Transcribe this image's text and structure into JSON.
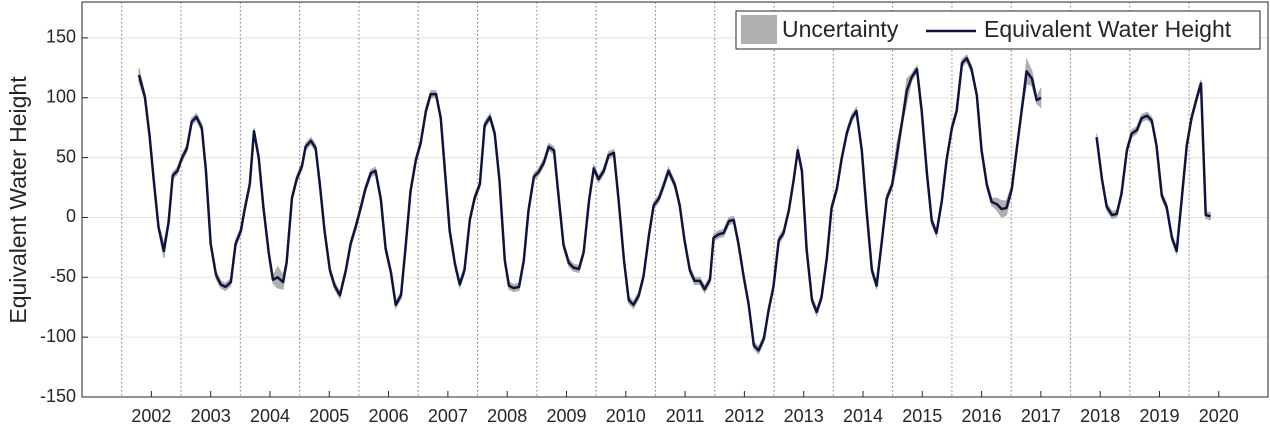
{
  "chart_data": {
    "type": "line",
    "y_label": "Equivalent Water Height",
    "xlim": [
      2001.33,
      2021.33
    ],
    "ylim": [
      -150,
      180
    ],
    "yticks": [
      -150,
      -100,
      -50,
      0,
      50,
      100,
      150
    ],
    "xticks": [
      {
        "value": 2002.5,
        "label": "2002"
      },
      {
        "value": 2003.5,
        "label": "2003"
      },
      {
        "value": 2004.5,
        "label": "2004"
      },
      {
        "value": 2005.5,
        "label": "2005"
      },
      {
        "value": 2006.5,
        "label": "2006"
      },
      {
        "value": 2007.5,
        "label": "2007"
      },
      {
        "value": 2008.5,
        "label": "2008"
      },
      {
        "value": 2009.5,
        "label": "2009"
      },
      {
        "value": 2010.5,
        "label": "2010"
      },
      {
        "value": 2011.5,
        "label": "2011"
      },
      {
        "value": 2012.5,
        "label": "2012"
      },
      {
        "value": 2013.5,
        "label": "2013"
      },
      {
        "value": 2014.5,
        "label": "2014"
      },
      {
        "value": 2015.5,
        "label": "2015"
      },
      {
        "value": 2016.5,
        "label": "2016"
      },
      {
        "value": 2017.5,
        "label": "2017"
      },
      {
        "value": 2018.5,
        "label": "2018"
      },
      {
        "value": 2019.5,
        "label": "2019"
      },
      {
        "value": 2020.5,
        "label": "2020"
      }
    ],
    "x_dividers": [
      2002,
      2003,
      2004,
      2005,
      2006,
      2007,
      2008,
      2009,
      2010,
      2011,
      2012,
      2013,
      2014,
      2015,
      2016,
      2017,
      2018,
      2019,
      2020
    ],
    "grid": true,
    "legend": "upper right",
    "x": [
      2002.29,
      2002.39,
      2002.47,
      2002.54,
      2002.62,
      2002.71,
      2002.79,
      2002.86,
      2002.94,
      2003.01,
      2003.1,
      2003.18,
      2003.26,
      2003.35,
      2003.42,
      2003.5,
      2003.59,
      2003.67,
      2003.75,
      2003.84,
      2003.92,
      2004.01,
      2004.07,
      2004.16,
      2004.23,
      2004.31,
      2004.39,
      2004.48,
      2004.55,
      2004.63,
      2004.72,
      2004.78,
      2004.87,
      2004.95,
      2005.04,
      2005.1,
      2005.19,
      2005.27,
      2005.34,
      2005.42,
      2005.51,
      2005.59,
      2005.68,
      2005.78,
      2005.86,
      2005.95,
      2006.03,
      2006.11,
      2006.2,
      2006.28,
      2006.37,
      2006.45,
      2006.54,
      2006.62,
      2006.71,
      2006.79,
      2006.87,
      2006.96,
      2007.04,
      2007.13,
      2007.21,
      2007.3,
      2007.38,
      2007.45,
      2007.53,
      2007.62,
      2007.7,
      2007.78,
      2007.87,
      2007.95,
      2008.04,
      2008.12,
      2008.21,
      2008.29,
      2008.37,
      2008.46,
      2008.53,
      2008.61,
      2008.7,
      2008.78,
      2008.86,
      2008.95,
      2009.03,
      2009.12,
      2009.2,
      2009.29,
      2009.37,
      2009.45,
      2009.54,
      2009.62,
      2009.71,
      2009.79,
      2009.88,
      2009.96,
      2010.04,
      2010.13,
      2010.21,
      2010.3,
      2010.38,
      2010.47,
      2010.55,
      2010.63,
      2010.72,
      2010.8,
      2010.89,
      2010.97,
      2011.06,
      2011.14,
      2011.22,
      2011.33,
      2011.41,
      2011.49,
      2011.58,
      2011.66,
      2011.75,
      2011.83,
      2011.92,
      2011.98,
      2012.07,
      2012.15,
      2012.24,
      2012.32,
      2012.4,
      2012.49,
      2012.57,
      2012.66,
      2012.74,
      2012.83,
      2012.91,
      2012.99,
      2013.08,
      2013.16,
      2013.25,
      2013.33,
      2013.4,
      2013.47,
      2013.55,
      2013.64,
      2013.72,
      2013.8,
      2013.89,
      2013.97,
      2014.06,
      2014.14,
      2014.23,
      2014.31,
      2014.39,
      2014.48,
      2014.56,
      2014.65,
      2014.73,
      2014.82,
      2014.9,
      2014.99,
      2015.07,
      2015.15,
      2015.24,
      2015.32,
      2015.41,
      2015.49,
      2015.58,
      2015.66,
      2015.74,
      2015.83,
      2015.91,
      2016.0,
      2016.08,
      2016.17,
      2016.25,
      2016.33,
      2016.42,
      2016.5,
      2016.59,
      2016.67,
      2016.76,
      2016.84,
      2016.92,
      2017.01,
      2017.09,
      2017.18,
      2017.26,
      2017.35,
      2017.43,
      2017.5,
      2018.0,
      2018.44,
      2018.53,
      2018.61,
      2018.7,
      2018.78,
      2018.86,
      2018.95,
      2019.03,
      2019.12,
      2019.2,
      2019.29,
      2019.37,
      2019.45,
      2019.54,
      2019.62,
      2019.71,
      2019.79,
      2019.88,
      2019.96,
      2020.04,
      2020.13,
      2020.2,
      2020.28,
      2020.36
    ],
    "series": [
      {
        "name": "Uncertainty",
        "color": "#b0b0b0",
        "values": [
          6,
          3,
          3,
          3,
          3,
          6,
          3,
          3,
          3,
          3,
          3,
          3,
          3,
          3,
          3,
          3,
          3,
          3,
          3,
          3,
          3,
          3,
          3,
          3,
          3,
          3,
          3,
          3,
          3,
          9,
          6,
          3,
          3,
          3,
          3,
          3,
          3,
          3,
          3,
          3,
          3,
          3,
          3,
          3,
          3,
          3,
          3,
          3,
          3,
          3,
          3,
          3,
          3,
          3,
          3,
          3,
          3,
          3,
          3,
          3,
          3,
          3,
          3,
          3,
          3,
          3,
          3,
          3,
          3,
          3,
          3,
          3,
          3,
          3,
          3,
          3,
          3,
          3,
          3,
          3,
          3,
          3,
          3,
          3,
          3,
          3,
          3,
          3,
          3,
          3,
          3,
          3,
          3,
          3,
          3,
          3,
          3,
          3,
          3,
          3,
          3,
          3,
          3,
          3,
          3,
          3,
          3,
          3,
          3,
          3,
          3,
          3,
          3,
          3,
          3,
          3,
          3,
          3,
          3,
          3,
          3,
          3,
          3,
          3,
          3,
          3,
          3,
          3,
          3,
          3,
          3,
          3,
          3,
          3,
          4,
          3,
          3,
          3,
          3,
          3,
          3,
          3,
          3,
          3,
          3,
          3,
          3,
          3,
          3,
          3,
          3,
          3,
          3,
          3,
          10,
          3,
          10,
          3,
          3,
          3,
          3,
          3,
          3,
          3,
          3,
          3,
          3,
          3,
          3,
          3,
          3,
          3,
          3,
          3,
          5,
          7,
          6,
          3,
          3,
          3,
          10,
          6,
          3,
          8,
          null,
          3,
          3,
          3,
          3,
          3,
          3,
          3,
          3,
          3,
          3,
          3,
          3,
          3,
          3,
          3,
          3,
          3,
          3,
          3,
          3,
          3,
          3,
          3,
          3
        ]
      },
      {
        "name": "Equivalent Water Height",
        "color": "#0d1440",
        "values": [
          119,
          101,
          68,
          31,
          -8,
          -28,
          -4,
          35,
          39,
          49,
          58,
          80,
          84,
          75,
          39,
          -22,
          -48,
          -56,
          -58,
          -54,
          -22,
          -11,
          6,
          28,
          72,
          50,
          8,
          -30,
          -52,
          -50,
          -54,
          -38,
          16,
          32,
          43,
          59,
          64,
          58,
          28,
          -11,
          -44,
          -57,
          -65,
          -44,
          -22,
          -7,
          8,
          24,
          37,
          39,
          15,
          -26,
          -46,
          -73,
          -65,
          -23,
          22,
          48,
          62,
          89,
          103,
          103,
          83,
          39,
          -11,
          -39,
          -56,
          -44,
          -2,
          16,
          28,
          77,
          84,
          70,
          31,
          -36,
          -57,
          -59,
          -58,
          -36,
          6,
          34,
          38,
          46,
          59,
          56,
          16,
          -23,
          -38,
          -42,
          -43,
          -29,
          14,
          41,
          32,
          39,
          52,
          54,
          14,
          -36,
          -69,
          -73,
          -65,
          -49,
          -15,
          10,
          16,
          27,
          39,
          27,
          10,
          -19,
          -44,
          -53,
          -53,
          -60,
          -52,
          -17,
          -14,
          -13,
          -3,
          -2,
          -22,
          -50,
          -72,
          -107,
          -111,
          -101,
          -77,
          -58,
          -19,
          -13,
          6,
          31,
          56,
          39,
          -27,
          -69,
          -79,
          -67,
          -34,
          8,
          24,
          49,
          71,
          83,
          89,
          56,
          6,
          -44,
          -57,
          -19,
          16,
          27,
          52,
          77,
          106,
          117,
          124,
          89,
          36,
          -3,
          -13,
          14,
          48,
          75,
          89,
          129,
          133,
          124,
          102,
          56,
          27,
          13,
          11,
          7,
          8,
          24,
          56,
          91,
          122,
          116,
          98,
          100,
          null,
          67,
          32,
          9,
          2,
          3,
          20,
          56,
          70,
          73,
          83,
          85,
          81,
          60,
          18,
          9,
          -17,
          -28,
          18,
          60,
          83,
          100,
          112,
          2,
          1
        ]
      }
    ]
  }
}
